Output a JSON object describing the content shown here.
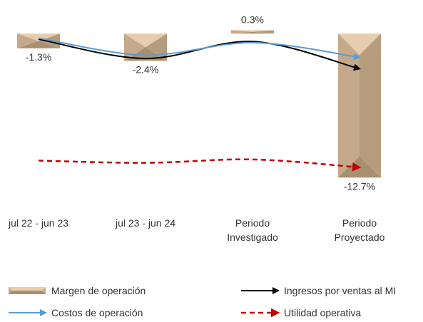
{
  "chart_data": {
    "type": "bar",
    "title": "",
    "xlabel": "",
    "ylabel": "",
    "categories": [
      [
        "jul 22 - jun 23"
      ],
      [
        "jul 23 - jun 24"
      ],
      [
        "Periodo",
        "Investigado"
      ],
      [
        "Periodo",
        "Proyectado"
      ]
    ],
    "ylim": [
      -14,
      1.2
    ],
    "grid": false,
    "legend_position": "bottom",
    "series": [
      {
        "name": "Margen de operación",
        "kind": "bar",
        "values": [
          -1.3,
          -2.4,
          0.3,
          -12.7
        ],
        "labels": [
          "-1.3%",
          "-2.4%",
          "0.3%",
          "-12.7%"
        ],
        "color": "#c4a98a"
      },
      {
        "name": "Ingresos por ventas al MI",
        "kind": "line",
        "values": [
          -0.5,
          -2.2,
          -0.7,
          -3.1
        ],
        "color": "#000000"
      },
      {
        "name": "Costos de operación",
        "kind": "line",
        "values": [
          -0.4,
          -1.9,
          -0.8,
          -2.1
        ],
        "color": "#5b9bd5"
      },
      {
        "name": "Utilidad operativa",
        "kind": "line",
        "dashed": true,
        "values": [
          -11.2,
          -11.4,
          -11.1,
          -11.8
        ],
        "color": "#c00000"
      }
    ]
  }
}
